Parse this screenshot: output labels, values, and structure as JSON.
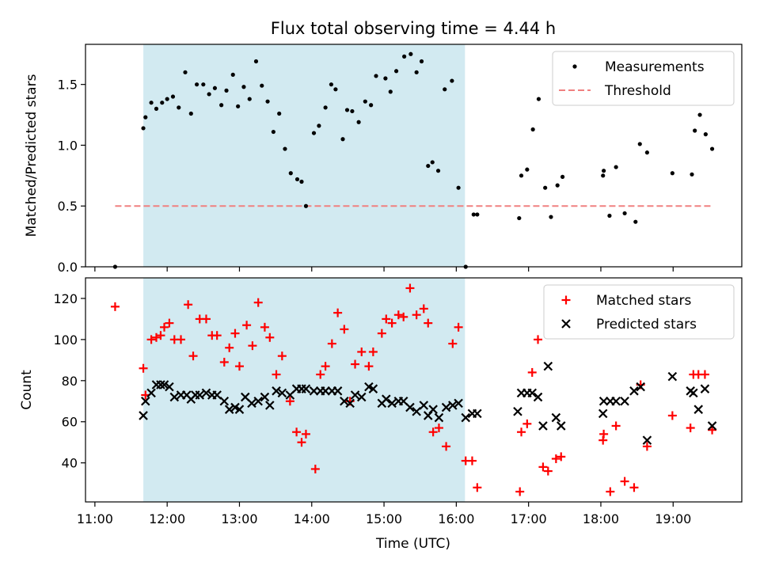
{
  "figure": {
    "title": "Flux total observing time = 4.44 h",
    "xlabel": "Time (UTC)"
  },
  "colors": {
    "shade": "#add8e6",
    "measurement": "#000000",
    "threshold": "#f08080",
    "matched": "#ff0000",
    "predicted": "#000000"
  },
  "chart_data": [
    {
      "type": "scatter",
      "name": "ratio-panel",
      "ylabel": "Matched/Predicted stars",
      "xlim": [
        10.87,
        19.95
      ],
      "ylim": [
        0,
        1.83
      ],
      "yticks": [
        0.0,
        0.5,
        1.0,
        1.5
      ],
      "ytick_labels": [
        "0.0",
        "0.5",
        "1.0",
        "1.5"
      ],
      "xticks": [
        11,
        12,
        13,
        14,
        15,
        16,
        17,
        18,
        19
      ],
      "legend": {
        "placement": "top-right",
        "entries": [
          "Measurements",
          "Threshold"
        ]
      },
      "shaded_span": [
        11.67,
        16.12
      ],
      "threshold": {
        "value": 0.5,
        "x_range": [
          11.28,
          19.55
        ]
      },
      "series": [
        {
          "name": "Measurements",
          "x": [
            11.28,
            11.67,
            11.7,
            11.78,
            11.85,
            11.93,
            12.0,
            12.08,
            12.16,
            12.25,
            12.33,
            12.41,
            12.5,
            12.58,
            12.66,
            12.75,
            12.82,
            12.91,
            12.98,
            13.06,
            13.14,
            13.23,
            13.31,
            13.39,
            13.47,
            13.55,
            13.63,
            13.71,
            13.8,
            13.86,
            13.92,
            14.03,
            14.1,
            14.19,
            14.27,
            14.33,
            14.43,
            14.49,
            14.56,
            14.65,
            14.74,
            14.82,
            14.89,
            15.02,
            15.09,
            15.17,
            15.28,
            15.37,
            15.45,
            15.52,
            15.61,
            15.67,
            15.75,
            15.84,
            15.94,
            16.03,
            16.13,
            16.24,
            16.29,
            16.87,
            16.9,
            16.98,
            17.06,
            17.14,
            17.23,
            17.31,
            17.4,
            17.47,
            18.03,
            18.04,
            18.12,
            18.21,
            18.33,
            18.48,
            18.54,
            18.64,
            18.99,
            19.26,
            19.3,
            19.37,
            19.45,
            19.54
          ],
          "y": [
            0.0,
            1.14,
            1.23,
            1.35,
            1.3,
            1.35,
            1.38,
            1.4,
            1.31,
            1.6,
            1.26,
            1.5,
            1.5,
            1.42,
            1.47,
            1.33,
            1.45,
            1.58,
            1.32,
            1.48,
            1.38,
            1.69,
            1.49,
            1.36,
            1.11,
            1.26,
            0.97,
            0.77,
            0.72,
            0.7,
            0.5,
            1.1,
            1.16,
            1.31,
            1.5,
            1.46,
            1.05,
            1.29,
            1.28,
            1.19,
            1.36,
            1.33,
            1.57,
            1.55,
            1.44,
            1.61,
            1.73,
            1.75,
            1.6,
            1.69,
            0.83,
            0.86,
            0.79,
            1.46,
            1.53,
            0.65,
            0.0,
            0.43,
            0.43,
            0.4,
            0.75,
            0.8,
            1.13,
            1.38,
            0.65,
            0.41,
            0.67,
            0.74,
            0.75,
            0.79,
            0.42,
            0.82,
            0.44,
            0.37,
            1.01,
            0.94,
            0.77,
            0.76,
            1.12,
            1.25,
            1.09,
            0.97
          ]
        }
      ]
    },
    {
      "type": "scatter",
      "name": "count-panel",
      "ylabel": "Count",
      "xlim": [
        10.87,
        19.95
      ],
      "ylim": [
        21,
        130
      ],
      "yticks": [
        40,
        60,
        80,
        100,
        120
      ],
      "ytick_labels": [
        "40",
        "60",
        "80",
        "100",
        "120"
      ],
      "xticks": [
        11,
        12,
        13,
        14,
        15,
        16,
        17,
        18,
        19
      ],
      "xtick_labels": [
        "11:00",
        "12:00",
        "13:00",
        "14:00",
        "15:00",
        "16:00",
        "17:00",
        "18:00",
        "19:00"
      ],
      "legend": {
        "placement": "top-right",
        "entries": [
          "Matched stars",
          "Predicted stars"
        ]
      },
      "shaded_span": [
        11.67,
        16.12
      ],
      "series": [
        {
          "name": "Matched stars",
          "marker": "plus",
          "x": [
            11.28,
            11.67,
            11.7,
            11.78,
            11.85,
            11.91,
            11.96,
            12.03,
            12.1,
            12.19,
            12.29,
            12.36,
            12.45,
            12.54,
            12.62,
            12.69,
            12.79,
            12.86,
            12.94,
            13.0,
            13.1,
            13.18,
            13.26,
            13.35,
            13.42,
            13.51,
            13.59,
            13.7,
            13.79,
            13.86,
            13.92,
            14.05,
            14.12,
            14.19,
            14.28,
            14.36,
            14.45,
            14.53,
            14.6,
            14.69,
            14.79,
            14.85,
            14.97,
            15.03,
            15.11,
            15.2,
            15.27,
            15.36,
            15.45,
            15.55,
            15.61,
            15.68,
            15.76,
            15.86,
            15.95,
            16.03,
            16.13,
            16.22,
            16.29,
            16.88,
            16.9,
            16.98,
            17.05,
            17.13,
            17.2,
            17.27,
            17.38,
            17.45,
            18.03,
            18.04,
            18.13,
            18.21,
            18.33,
            18.46,
            18.55,
            18.64,
            18.99,
            19.24,
            19.28,
            19.35,
            19.44,
            19.54
          ],
          "y": [
            116,
            86,
            73,
            100,
            101,
            102,
            106,
            108,
            100,
            100,
            117,
            92,
            110,
            110,
            102,
            102,
            89,
            96,
            103,
            87,
            107,
            97,
            118,
            106,
            101,
            83,
            92,
            70,
            55,
            50,
            54,
            37,
            83,
            87,
            98,
            113,
            105,
            70,
            88,
            94,
            87,
            94,
            103,
            110,
            108,
            112,
            111,
            125,
            112,
            115,
            108,
            55,
            57,
            48,
            98,
            106,
            41,
            41,
            28,
            26,
            55,
            59,
            84,
            100,
            38,
            36,
            42,
            43,
            51,
            54,
            26,
            58,
            31,
            28,
            78,
            48,
            63,
            57,
            83,
            83,
            83,
            56
          ]
        },
        {
          "name": "Predicted stars",
          "marker": "x",
          "x": [
            11.67,
            11.7,
            11.78,
            11.85,
            11.91,
            11.96,
            12.03,
            12.1,
            12.19,
            12.27,
            12.33,
            12.39,
            12.45,
            12.54,
            12.62,
            12.69,
            12.79,
            12.86,
            12.94,
            13.0,
            13.08,
            13.17,
            13.26,
            13.35,
            13.42,
            13.51,
            13.59,
            13.7,
            13.79,
            13.86,
            13.92,
            14.03,
            14.12,
            14.19,
            14.28,
            14.36,
            14.45,
            14.53,
            14.6,
            14.69,
            14.79,
            14.85,
            14.97,
            15.03,
            15.11,
            15.2,
            15.27,
            15.36,
            15.45,
            15.55,
            15.61,
            15.68,
            15.76,
            15.86,
            15.95,
            16.03,
            16.13,
            16.22,
            16.29,
            16.85,
            16.9,
            16.98,
            17.05,
            17.13,
            17.2,
            17.27,
            17.38,
            17.45,
            18.03,
            18.04,
            18.13,
            18.21,
            18.33,
            18.46,
            18.55,
            18.64,
            18.99,
            19.24,
            19.28,
            19.35,
            19.44,
            19.54
          ],
          "y": [
            63,
            70,
            74,
            78,
            78,
            78,
            77,
            72,
            73,
            73,
            71,
            73,
            73,
            74,
            73,
            73,
            70,
            66,
            67,
            66,
            72,
            69,
            70,
            72,
            68,
            75,
            74,
            73,
            76,
            76,
            76,
            75,
            75,
            75,
            75,
            75,
            70,
            69,
            73,
            72,
            77,
            76,
            69,
            71,
            69,
            70,
            70,
            67,
            65,
            68,
            63,
            66,
            62,
            67,
            68,
            69,
            62,
            64,
            64,
            65,
            74,
            74,
            74,
            72,
            58,
            87,
            62,
            58,
            64,
            70,
            70,
            70,
            70,
            75,
            77,
            51,
            82,
            75,
            74,
            66,
            76,
            58
          ]
        }
      ]
    }
  ]
}
